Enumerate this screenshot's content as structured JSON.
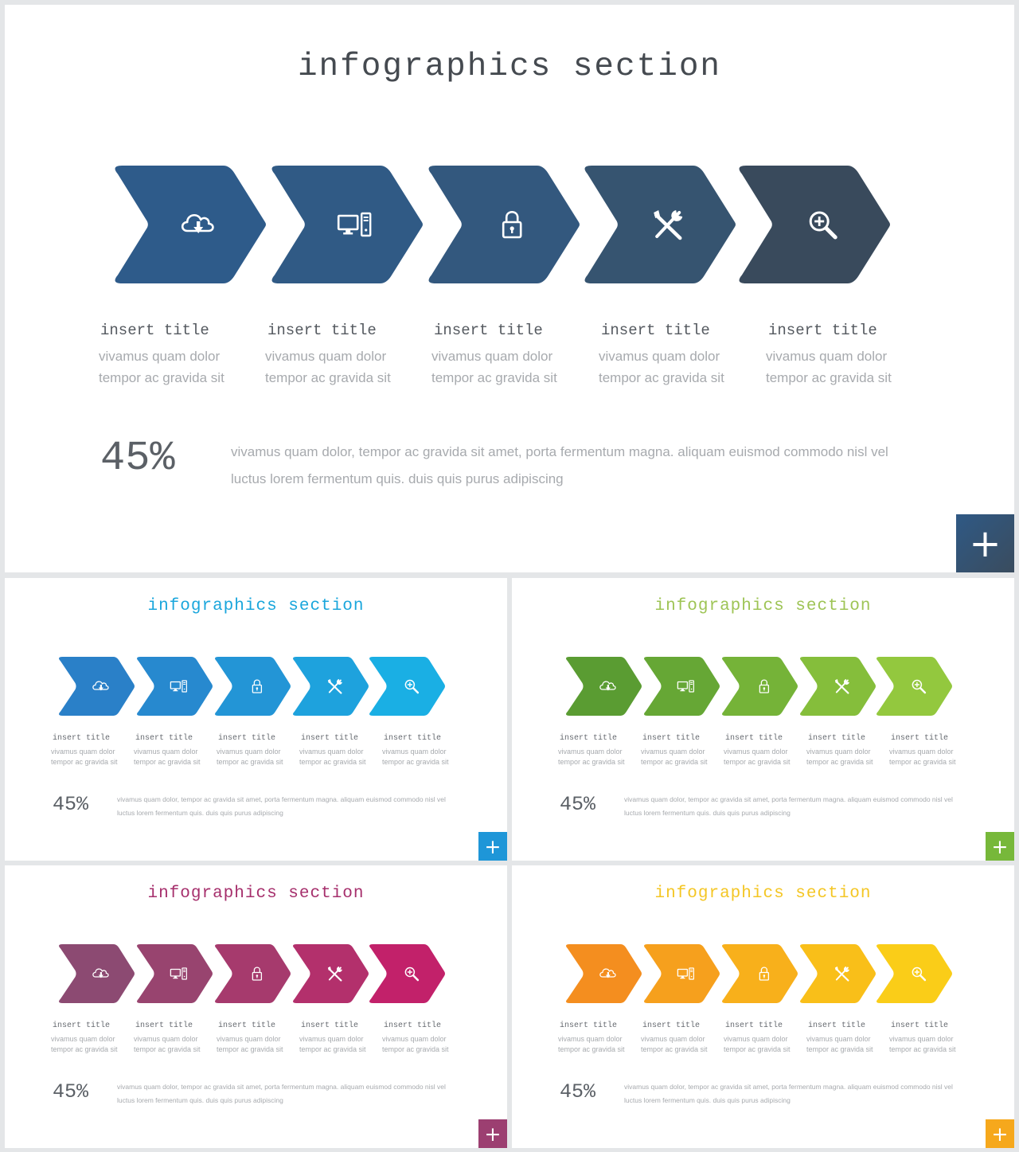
{
  "slide_title": "infographics section",
  "steps": [
    {
      "icon": "cloud-download-icon",
      "title": "insert title",
      "desc_line1": "vivamus quam dolor",
      "desc_line2": "tempor ac gravida sit"
    },
    {
      "icon": "desktop-computer-icon",
      "title": "insert title",
      "desc_line1": "vivamus quam dolor",
      "desc_line2": "tempor ac gravida sit"
    },
    {
      "icon": "padlock-icon",
      "title": "insert title",
      "desc_line1": "vivamus quam dolor",
      "desc_line2": "tempor ac gravida sit"
    },
    {
      "icon": "tools-icon",
      "title": "insert title",
      "desc_line1": "vivamus quam dolor",
      "desc_line2": "tempor ac gravida sit"
    },
    {
      "icon": "zoom-in-icon",
      "title": "insert title",
      "desc_line1": "vivamus quam dolor",
      "desc_line2": "tempor ac gravida sit"
    }
  ],
  "percent": "45%",
  "summary_line1": "vivamus quam dolor, tempor ac gravida sit amet, porta fermentum magna. aliquam euismod commodo nisl vel",
  "summary_line2": "luctus lorem fermentum quis. duis quis purus adipiscing",
  "plus_label": "+",
  "themes": {
    "navy": {
      "title_color": "#454a50",
      "arrow_colors": [
        "#2e5b8a",
        "#305a85",
        "#33587e",
        "#365470",
        "#394a5c"
      ],
      "button_color": "#355273"
    },
    "blue": {
      "title_color": "#1aa6dc",
      "arrow_colors": [
        "#2a80c8",
        "#2789cf",
        "#2395d6",
        "#1ea2dd",
        "#1aafe4"
      ],
      "button_color": "#1e96d8"
    },
    "green": {
      "title_color": "#9ec455",
      "arrow_colors": [
        "#5a9c32",
        "#66a735",
        "#75b338",
        "#85be3b",
        "#93c83e"
      ],
      "button_color": "#77b83a"
    },
    "purple": {
      "title_color": "#a62f6c",
      "arrow_colors": [
        "#8c4a72",
        "#98446f",
        "#a63a6d",
        "#b3306c",
        "#c2216a"
      ],
      "button_color": "#9c3f71"
    },
    "orange": {
      "title_color": "#f4c624",
      "arrow_colors": [
        "#f48e1f",
        "#f6a01d",
        "#f8b01b",
        "#f9bf19",
        "#facd18"
      ],
      "button_color": "#f6a81c"
    }
  }
}
